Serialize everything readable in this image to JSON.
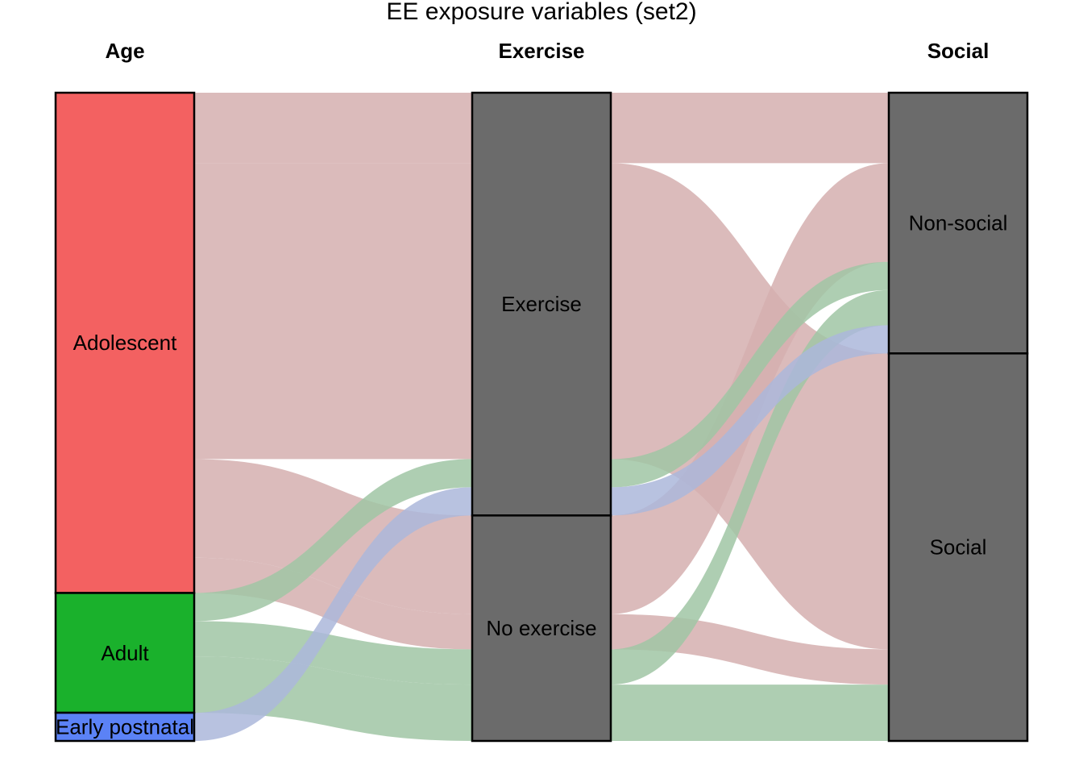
{
  "chart_data": {
    "type": "alluvial",
    "title": "EE exposure variables (set2)",
    "axes": [
      "Age",
      "Exercise",
      "Social"
    ],
    "strata": {
      "Age": [
        "Adolescent",
        "Adult",
        "Early postnatal"
      ],
      "Exercise": [
        "Exercise",
        "No exercise"
      ],
      "Social": [
        "Non-social",
        "Social"
      ]
    },
    "stratum_colors": {
      "Adolescent": "#F36161",
      "Adult": "#1AB12C",
      "Early postnatal": "#5B82F6",
      "Exercise": "#6B6B6B",
      "No exercise": "#6B6B6B",
      "Non-social": "#6B6B6B",
      "Social": "#6B6B6B"
    },
    "flow_colors": {
      "Adolescent": "#D5AFAF",
      "Adult": "#A0C6A4",
      "Early postnatal": "#ABB7DA",
      "lode": "#D6D6D6",
      "Adolescent_lode": "#F9B0B0"
    },
    "flows": [
      {
        "age": "Adolescent",
        "exercise": "Exercise",
        "social": "Non-social",
        "value": 10
      },
      {
        "age": "Adolescent",
        "exercise": "Exercise",
        "social": "Social",
        "value": 42
      },
      {
        "age": "Adolescent",
        "exercise": "No exercise",
        "social": "Non-social",
        "value": 14
      },
      {
        "age": "Adolescent",
        "exercise": "No exercise",
        "social": "Social",
        "value": 5
      },
      {
        "age": "Adult",
        "exercise": "Exercise",
        "social": "Non-social",
        "value": 4
      },
      {
        "age": "Adult",
        "exercise": "No exercise",
        "social": "Non-social",
        "value": 5
      },
      {
        "age": "Adult",
        "exercise": "No exercise",
        "social": "Social",
        "value": 8
      },
      {
        "age": "Early postnatal",
        "exercise": "Exercise",
        "social": "Non-social",
        "value": 4
      }
    ]
  }
}
